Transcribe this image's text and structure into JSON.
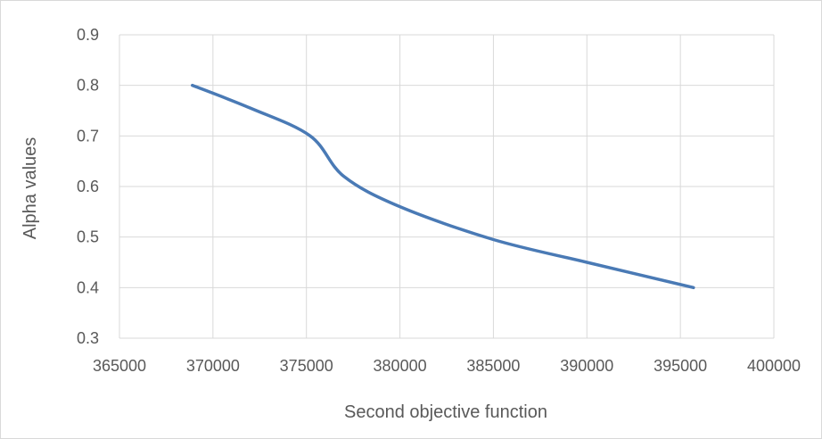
{
  "chart_data": {
    "type": "line",
    "title": "",
    "xlabel": "Second objective function",
    "ylabel": "Alpha values",
    "xlim": [
      365000,
      400000
    ],
    "ylim": [
      0.3,
      0.9
    ],
    "x_ticks": [
      365000,
      370000,
      375000,
      380000,
      385000,
      390000,
      395000,
      400000
    ],
    "y_ticks": [
      0.3,
      0.4,
      0.5,
      0.6,
      0.7,
      0.8,
      0.9
    ],
    "y_tick_labels": [
      "0.3",
      "0.4",
      "0.5",
      "0.6",
      "0.7",
      "0.8",
      "0.9"
    ],
    "grid": true,
    "legend": "none",
    "color": "#4a7ab5",
    "series": [
      {
        "x": [
          368900,
          372000,
          375200,
          377000,
          380000,
          385000,
          390000,
          395700
        ],
        "values": [
          0.8,
          0.755,
          0.7,
          0.62,
          0.56,
          0.495,
          0.45,
          0.4
        ]
      }
    ]
  }
}
